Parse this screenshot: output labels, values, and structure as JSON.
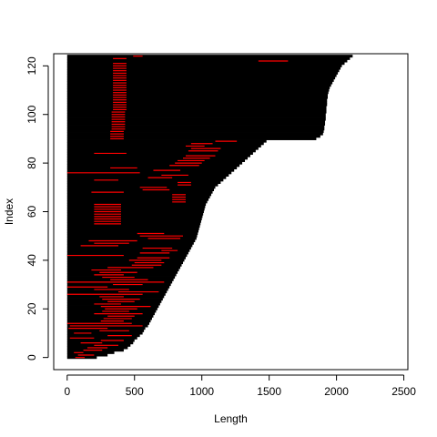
{
  "chart_data": {
    "type": "segment",
    "title": "",
    "xlabel": "Length",
    "ylabel": "Index",
    "xlim": [
      -100,
      2530
    ],
    "ylim": [
      -5,
      125
    ],
    "xticks": [
      0,
      500,
      1000,
      1500,
      2000,
      2500
    ],
    "yticks": [
      0,
      20,
      40,
      60,
      80,
      100,
      120
    ],
    "grid": false,
    "legend": "none",
    "colors": {
      "bar": "#000000",
      "highlight": "#ff0000",
      "frame": "#000000"
    },
    "lengths": [
      220,
      300,
      350,
      420,
      450,
      470,
      490,
      500,
      520,
      540,
      560,
      570,
      580,
      600,
      610,
      620,
      630,
      640,
      650,
      660,
      670,
      680,
      690,
      700,
      710,
      720,
      730,
      740,
      750,
      760,
      770,
      780,
      790,
      800,
      810,
      820,
      830,
      840,
      850,
      860,
      870,
      880,
      890,
      900,
      910,
      920,
      930,
      940,
      950,
      960,
      965,
      970,
      975,
      980,
      985,
      990,
      995,
      1000,
      1005,
      1010,
      1015,
      1020,
      1025,
      1030,
      1040,
      1050,
      1060,
      1070,
      1080,
      1090,
      1100,
      1120,
      1140,
      1160,
      1180,
      1200,
      1220,
      1240,
      1260,
      1280,
      1300,
      1320,
      1340,
      1360,
      1380,
      1400,
      1420,
      1440,
      1460,
      1480,
      1850,
      1880,
      1900,
      1905,
      1910,
      1910,
      1915,
      1915,
      1920,
      1920,
      1920,
      1925,
      1925,
      1925,
      1930,
      1930,
      1930,
      1935,
      1935,
      1940,
      1945,
      1950,
      1960,
      1970,
      1980,
      1990,
      2000,
      2010,
      2020,
      2030,
      2040,
      2060,
      2080,
      2100,
      2120
    ],
    "highlights": [
      {
        "index": 0,
        "start": 60,
        "end": 130
      },
      {
        "index": 1,
        "start": 80,
        "end": 200
      },
      {
        "index": 2,
        "start": 50,
        "end": 120
      },
      {
        "index": 3,
        "start": 120,
        "end": 260
      },
      {
        "index": 4,
        "start": 150,
        "end": 300
      },
      {
        "index": 5,
        "start": 200,
        "end": 380
      },
      {
        "index": 6,
        "start": 100,
        "end": 260
      },
      {
        "index": 7,
        "start": 250,
        "end": 420
      },
      {
        "index": 8,
        "start": 20,
        "end": 200
      },
      {
        "index": 9,
        "start": 300,
        "end": 480
      },
      {
        "index": 10,
        "start": 50,
        "end": 180
      },
      {
        "index": 11,
        "start": 240,
        "end": 460
      },
      {
        "index": 12,
        "start": 10,
        "end": 300
      },
      {
        "index": 13,
        "start": 20,
        "end": 560
      },
      {
        "index": 14,
        "start": 0,
        "end": 480
      },
      {
        "index": 15,
        "start": 250,
        "end": 420
      },
      {
        "index": 16,
        "start": 270,
        "end": 480
      },
      {
        "index": 17,
        "start": 300,
        "end": 500
      },
      {
        "index": 18,
        "start": 200,
        "end": 560
      },
      {
        "index": 19,
        "start": 260,
        "end": 460
      },
      {
        "index": 20,
        "start": 280,
        "end": 520
      },
      {
        "index": 21,
        "start": 250,
        "end": 620
      },
      {
        "index": 22,
        "start": 200,
        "end": 400
      },
      {
        "index": 23,
        "start": 300,
        "end": 500
      },
      {
        "index": 24,
        "start": 260,
        "end": 540
      },
      {
        "index": 25,
        "start": 240,
        "end": 420
      },
      {
        "index": 26,
        "start": 0,
        "end": 560
      },
      {
        "index": 27,
        "start": 380,
        "end": 680
      },
      {
        "index": 28,
        "start": 200,
        "end": 460
      },
      {
        "index": 29,
        "start": 0,
        "end": 300
      },
      {
        "index": 30,
        "start": 340,
        "end": 560
      },
      {
        "index": 31,
        "start": 0,
        "end": 720
      },
      {
        "index": 32,
        "start": 320,
        "end": 600
      },
      {
        "index": 33,
        "start": 260,
        "end": 500
      },
      {
        "index": 34,
        "start": 200,
        "end": 420
      },
      {
        "index": 35,
        "start": 240,
        "end": 520
      },
      {
        "index": 36,
        "start": 180,
        "end": 400
      },
      {
        "index": 37,
        "start": 300,
        "end": 640
      },
      {
        "index": 38,
        "start": 480,
        "end": 700
      },
      {
        "index": 39,
        "start": 500,
        "end": 720
      },
      {
        "index": 40,
        "start": 460,
        "end": 700
      },
      {
        "index": 41,
        "start": 520,
        "end": 760
      },
      {
        "index": 42,
        "start": 0,
        "end": 420
      },
      {
        "index": 43,
        "start": 540,
        "end": 760
      },
      {
        "index": 44,
        "start": 700,
        "end": 820
      },
      {
        "index": 45,
        "start": 560,
        "end": 780
      },
      {
        "index": 46,
        "start": 100,
        "end": 380
      },
      {
        "index": 47,
        "start": 200,
        "end": 460
      },
      {
        "index": 48,
        "start": 160,
        "end": 520
      },
      {
        "index": 49,
        "start": 600,
        "end": 840
      },
      {
        "index": 50,
        "start": 540,
        "end": 860
      },
      {
        "index": 51,
        "start": 520,
        "end": 720
      },
      {
        "index": 55,
        "start": 200,
        "end": 400
      },
      {
        "index": 56,
        "start": 200,
        "end": 400
      },
      {
        "index": 57,
        "start": 200,
        "end": 400
      },
      {
        "index": 58,
        "start": 200,
        "end": 400
      },
      {
        "index": 59,
        "start": 200,
        "end": 400
      },
      {
        "index": 60,
        "start": 200,
        "end": 400
      },
      {
        "index": 61,
        "start": 200,
        "end": 400
      },
      {
        "index": 62,
        "start": 200,
        "end": 400
      },
      {
        "index": 63,
        "start": 200,
        "end": 400
      },
      {
        "index": 64,
        "start": 780,
        "end": 880
      },
      {
        "index": 65,
        "start": 780,
        "end": 880
      },
      {
        "index": 66,
        "start": 780,
        "end": 880
      },
      {
        "index": 67,
        "start": 780,
        "end": 880
      },
      {
        "index": 68,
        "start": 180,
        "end": 420
      },
      {
        "index": 69,
        "start": 560,
        "end": 760
      },
      {
        "index": 70,
        "start": 540,
        "end": 740
      },
      {
        "index": 71,
        "start": 820,
        "end": 920
      },
      {
        "index": 72,
        "start": 820,
        "end": 920
      },
      {
        "index": 73,
        "start": 200,
        "end": 380
      },
      {
        "index": 74,
        "start": 600,
        "end": 780
      },
      {
        "index": 75,
        "start": 700,
        "end": 900
      },
      {
        "index": 76,
        "start": 0,
        "end": 540
      },
      {
        "index": 77,
        "start": 640,
        "end": 840
      },
      {
        "index": 78,
        "start": 320,
        "end": 520
      },
      {
        "index": 79,
        "start": 760,
        "end": 980
      },
      {
        "index": 80,
        "start": 800,
        "end": 1000
      },
      {
        "index": 81,
        "start": 820,
        "end": 1020
      },
      {
        "index": 82,
        "start": 860,
        "end": 1060
      },
      {
        "index": 83,
        "start": 880,
        "end": 1100
      },
      {
        "index": 84,
        "start": 200,
        "end": 440
      },
      {
        "index": 85,
        "start": 900,
        "end": 1120
      },
      {
        "index": 86,
        "start": 920,
        "end": 1140
      },
      {
        "index": 87,
        "start": 880,
        "end": 1020
      },
      {
        "index": 88,
        "start": 920,
        "end": 1080
      },
      {
        "index": 89,
        "start": 1100,
        "end": 1260
      },
      {
        "index": 90,
        "start": 320,
        "end": 420
      },
      {
        "index": 91,
        "start": 320,
        "end": 420
      },
      {
        "index": 92,
        "start": 320,
        "end": 420
      },
      {
        "index": 93,
        "start": 320,
        "end": 420
      },
      {
        "index": 94,
        "start": 330,
        "end": 430
      },
      {
        "index": 95,
        "start": 330,
        "end": 430
      },
      {
        "index": 96,
        "start": 330,
        "end": 430
      },
      {
        "index": 97,
        "start": 330,
        "end": 430
      },
      {
        "index": 98,
        "start": 330,
        "end": 430
      },
      {
        "index": 99,
        "start": 330,
        "end": 430
      },
      {
        "index": 100,
        "start": 330,
        "end": 430
      },
      {
        "index": 101,
        "start": 330,
        "end": 430
      },
      {
        "index": 102,
        "start": 340,
        "end": 440
      },
      {
        "index": 103,
        "start": 340,
        "end": 440
      },
      {
        "index": 104,
        "start": 340,
        "end": 440
      },
      {
        "index": 105,
        "start": 340,
        "end": 440
      },
      {
        "index": 106,
        "start": 340,
        "end": 440
      },
      {
        "index": 107,
        "start": 340,
        "end": 440
      },
      {
        "index": 108,
        "start": 340,
        "end": 440
      },
      {
        "index": 109,
        "start": 340,
        "end": 440
      },
      {
        "index": 110,
        "start": 340,
        "end": 440
      },
      {
        "index": 111,
        "start": 340,
        "end": 440
      },
      {
        "index": 112,
        "start": 340,
        "end": 440
      },
      {
        "index": 113,
        "start": 340,
        "end": 440
      },
      {
        "index": 114,
        "start": 340,
        "end": 440
      },
      {
        "index": 115,
        "start": 340,
        "end": 440
      },
      {
        "index": 116,
        "start": 340,
        "end": 440
      },
      {
        "index": 117,
        "start": 340,
        "end": 440
      },
      {
        "index": 118,
        "start": 340,
        "end": 440
      },
      {
        "index": 119,
        "start": 340,
        "end": 440
      },
      {
        "index": 120,
        "start": 340,
        "end": 440
      },
      {
        "index": 121,
        "start": 340,
        "end": 440
      },
      {
        "index": 122,
        "start": 1420,
        "end": 1640
      },
      {
        "index": 123,
        "start": 340,
        "end": 440
      },
      {
        "index": 124,
        "start": 490,
        "end": 560
      }
    ]
  }
}
